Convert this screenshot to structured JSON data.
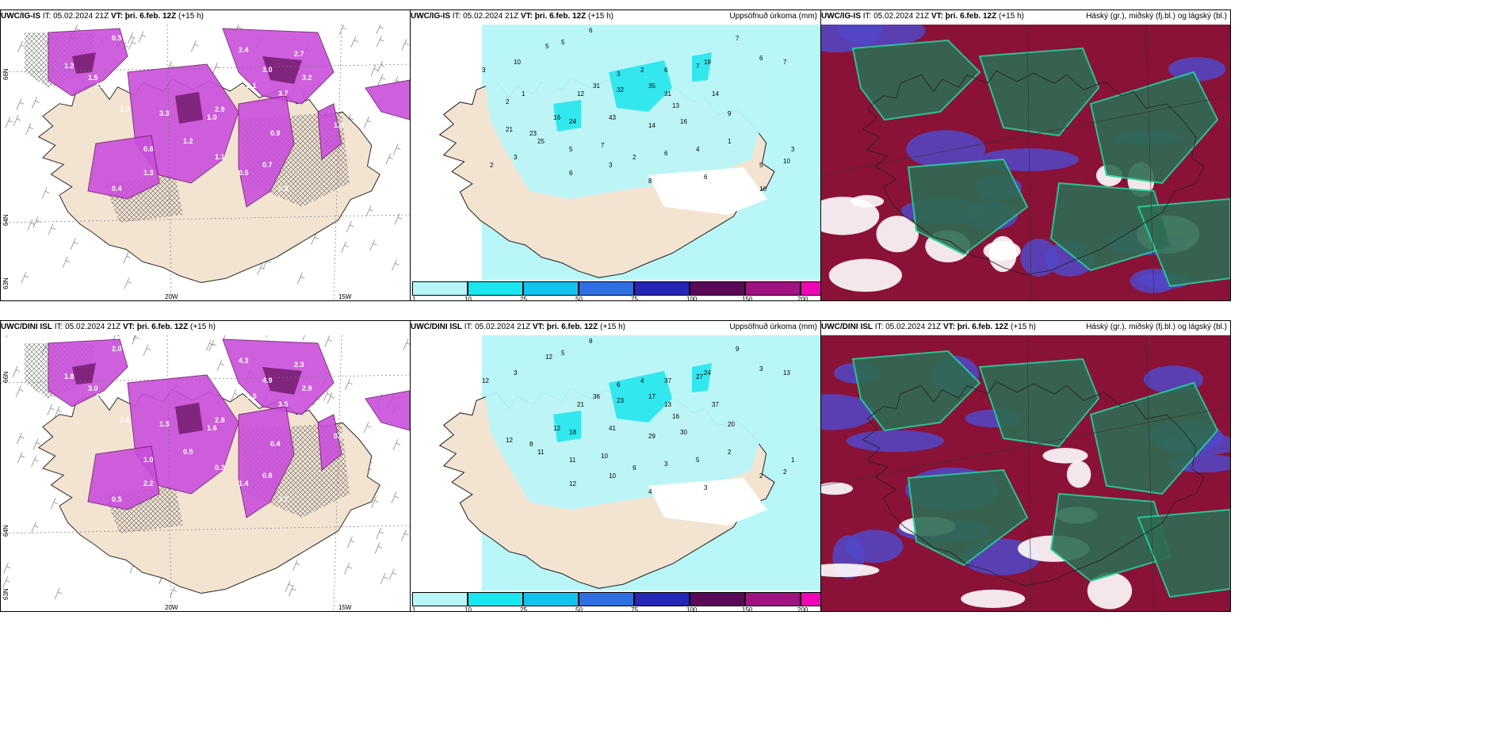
{
  "rows": [
    {
      "model": "UWC/IG-IS",
      "it_label": "IT:",
      "it_value": "05.02.2024 21Z",
      "vt_label": "VT:",
      "vt_value": "þri. 6.feb. 12Z",
      "lead": "(+15 h)"
    },
    {
      "model": "UWC/DINI ISL",
      "it_label": "IT:",
      "it_value": "05.02.2024 21Z",
      "vt_label": "VT:",
      "vt_value": "þri. 6.feb. 12Z",
      "lead": "(+15 h)"
    }
  ],
  "precip_title": "Uppsöfnuð úrkoma (mm)",
  "cloud_title": "Háský (gr.), miðský (fj.bl.) og lágský (bl.)",
  "lat_labels": [
    "66N",
    "64N",
    "63N"
  ],
  "lon_labels": [
    "20W",
    "15W"
  ],
  "legend": {
    "ticks": [
      "1",
      "10",
      "25",
      "50",
      "75",
      "100",
      "150",
      "200",
      "400"
    ],
    "colors": [
      "#b8f5f7",
      "#19e6ef",
      "#12c3ee",
      "#2f6fe2",
      "#2525b8",
      "#5a0858",
      "#a0127f",
      "#ee06b7",
      "#f3b2ef"
    ]
  },
  "colors": {
    "land": "#f3e4d2",
    "precip_light": "#b9f6f8",
    "precip_mid": "#33e7ef",
    "snow_magenta": "#c94fdb",
    "snow_dark": "#7a1f73",
    "cloud_red": "#8a1236",
    "cloud_green": "#2f6b52",
    "cloud_blue": "#5148c8"
  },
  "precip_labels_top": [
    "6",
    "5",
    "5",
    "7",
    "6",
    "7",
    "3",
    "10",
    "3",
    "2",
    "6",
    "7",
    "12",
    "31",
    "32",
    "35",
    "31",
    "19",
    "14",
    "13",
    "16",
    "24",
    "43",
    "14",
    "16",
    "9",
    "21",
    "23",
    "25",
    "5",
    "7",
    "2",
    "6",
    "4",
    "1",
    "6",
    "3",
    "8",
    "6",
    "5",
    "10",
    "3",
    "10",
    "3",
    "2",
    "2",
    "1"
  ],
  "precip_labels_bottom": [
    "8",
    "12",
    "5",
    "9",
    "3",
    "13",
    "12",
    "3",
    "6",
    "4",
    "37",
    "27",
    "21",
    "36",
    "23",
    "17",
    "13",
    "24",
    "37",
    "16",
    "12",
    "18",
    "41",
    "29",
    "30",
    "20",
    "12",
    "8",
    "11",
    "11",
    "10",
    "9",
    "3",
    "5",
    "2",
    "12",
    "10",
    "4",
    "3",
    "2",
    "2",
    "1"
  ],
  "snow_labels_top": [
    "0.5",
    "1.2",
    "1.5",
    "2.4",
    "3.0",
    "3.2",
    "2.7",
    "2.1",
    "3.7",
    "2.9",
    "1.5",
    "2.0",
    "3.3",
    "1.0",
    "1.2",
    "0.8",
    "1.1",
    "0.9",
    "1.3",
    "0.5",
    "0.4",
    "0.3",
    "0.7",
    "1.0"
  ],
  "snow_labels_bottom": [
    "2.0",
    "1.8",
    "3.0",
    "4.3",
    "4.9",
    "2.9",
    "2.3",
    "1.5",
    "3.5",
    "2.8",
    "1.2",
    "2.6",
    "1.3",
    "1.6",
    "0.5",
    "1.0",
    "0.3",
    "0.4",
    "2.2",
    "1.4",
    "0.5",
    "3.7",
    "0.8",
    "0.5"
  ]
}
